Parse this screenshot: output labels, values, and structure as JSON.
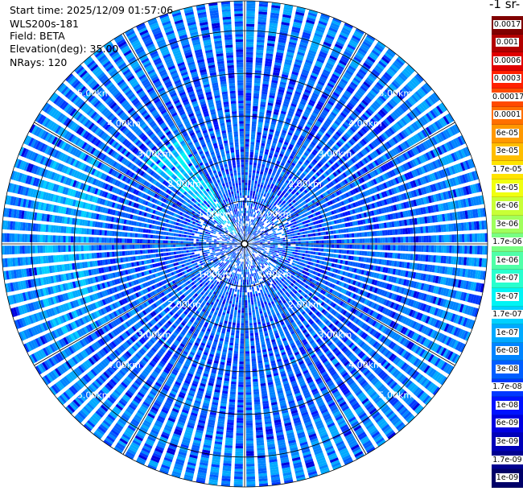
{
  "header": {
    "start_time": "Start time: 2025/12/09 01:57:06",
    "instrument": "WLS200s-181",
    "field": "Field: BETA",
    "elevation": "Elevation(deg): 35.00",
    "nrays": "NRays: 120"
  },
  "colorbar": {
    "title": "-1 sr-",
    "labels": [
      "0.0017",
      "0.001",
      "0.0006",
      "0.0003",
      "0.00017",
      "0.0001",
      "6e-05",
      "3e-05",
      "1.7e-05",
      "1e-05",
      "6e-06",
      "3e-06",
      "1.7e-06",
      "1e-06",
      "6e-07",
      "3e-07",
      "1.7e-07",
      "1e-07",
      "6e-08",
      "3e-08",
      "1.7e-08",
      "1e-08",
      "6e-09",
      "3e-09",
      "1.7e-09",
      "1e-09"
    ],
    "colors": [
      "#800000",
      "#b20000",
      "#e00000",
      "#ff2000",
      "#ff4a00",
      "#ff7000",
      "#ff9800",
      "#ffbe00",
      "#ffe400",
      "#f0ff10",
      "#c8ff36",
      "#a0ff5c",
      "#78ff82",
      "#50ffa8",
      "#28ffce",
      "#00f4f4",
      "#00d0ff",
      "#00aaff",
      "#0084ff",
      "#005eff",
      "#0038ff",
      "#0012ff",
      "#0000e0",
      "#0000b8",
      "#000090",
      "#000068"
    ]
  },
  "chart_data": {
    "type": "ppi-polar",
    "field": "BETA",
    "elevation_deg": 35.0,
    "n_rays": 120,
    "range_rings_km": [
      1.0,
      2.0,
      3.0,
      4.0,
      5.0
    ],
    "max_range_km": 5.7,
    "ring_labels": [
      "1.00km",
      "2.00km",
      "3.00km",
      "4.00km",
      "5.00km"
    ],
    "radial_lines_deg": [
      0,
      30,
      60,
      90,
      120,
      150,
      180,
      210,
      240,
      270,
      300,
      330
    ],
    "features": [
      {
        "kind": "enhanced-band",
        "azimuth_deg_range": [
          240,
          300
        ],
        "range_km": [
          3.6,
          4.9
        ],
        "value": "1e-07"
      },
      {
        "kind": "enhanced-streak",
        "azimuth_deg_range": [
          310,
          330
        ],
        "range_km": [
          0.3,
          3.0
        ],
        "value": "1.7e-07"
      }
    ]
  }
}
